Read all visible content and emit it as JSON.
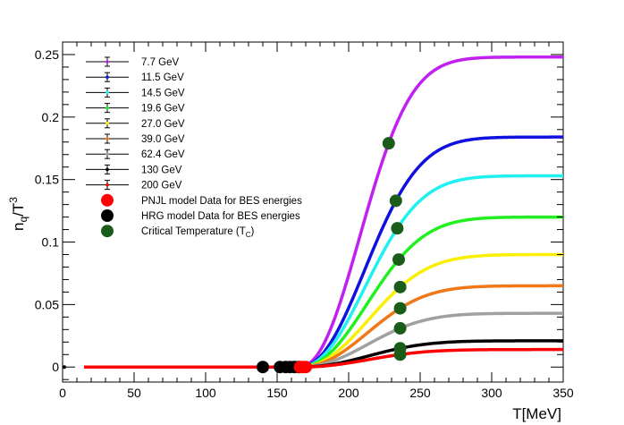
{
  "chart_data": {
    "type": "line",
    "title": "",
    "xlabel": "T[MeV]",
    "ylabel_main": "n",
    "ylabel_sub": "q",
    "ylabel_den": "/T",
    "ylabel_sup": "3",
    "xlim": [
      0,
      350
    ],
    "ylim": [
      -0.012,
      0.26
    ],
    "xticks": [
      0,
      50,
      100,
      150,
      200,
      250,
      300,
      350
    ],
    "xtick_labels": [
      "0",
      "50",
      "100",
      "150",
      "200",
      "250",
      "300",
      "350"
    ],
    "yticks": [
      0,
      0.05,
      0.1,
      0.15,
      0.2,
      0.25
    ],
    "ytick_labels": [
      "0",
      "0.05",
      "0.1",
      "0.15",
      "0.2",
      "0.25"
    ],
    "grid": false,
    "legend_position": "top-left",
    "series": [
      {
        "name": "7.7 GeV",
        "color": "#c020f0",
        "asymptote": 0.248,
        "tc": 228,
        "tc_value": 0.179
      },
      {
        "name": "11.5 GeV",
        "color": "#1010e0",
        "asymptote": 0.184,
        "tc": 233,
        "tc_value": 0.133
      },
      {
        "name": "14.5 GeV",
        "color": "#20f0f0",
        "asymptote": 0.153,
        "tc": 234,
        "tc_value": 0.111
      },
      {
        "name": "19.6 GeV",
        "color": "#20f020",
        "asymptote": 0.12,
        "tc": 235,
        "tc_value": 0.086
      },
      {
        "name": "27.0 GeV",
        "color": "#f8f000",
        "asymptote": 0.09,
        "tc": 236,
        "tc_value": 0.064
      },
      {
        "name": "39.0 GeV",
        "color": "#f07818",
        "asymptote": 0.065,
        "tc": 236,
        "tc_value": 0.047
      },
      {
        "name": "62.4 GeV",
        "color": "#a0a0a0",
        "asymptote": 0.043,
        "tc": 236,
        "tc_value": 0.031
      },
      {
        "name": "130 GeV",
        "color": "#000000",
        "asymptote": 0.021,
        "tc": 236,
        "tc_value": 0.015
      },
      {
        "name": "200 GeV",
        "color": "#ff0000",
        "asymptote": 0.014,
        "tc": 236,
        "tc_value": 0.01
      }
    ],
    "pnjl_points": {
      "name": "PNJL model Data for BES energies",
      "color": "#ff0000",
      "x": [
        166,
        168,
        170
      ],
      "y": [
        0,
        0,
        0
      ]
    },
    "hrg_points": {
      "name": "HRG model Data for BES energies",
      "color": "#000000",
      "x": [
        140,
        152,
        156,
        159,
        162,
        165
      ],
      "y": [
        0,
        0,
        0,
        0,
        0,
        0
      ]
    },
    "tc_legend": {
      "name": "Critical Temperature (T",
      "sub": "C",
      "tail": ")",
      "color": "#1a5c1a"
    }
  }
}
